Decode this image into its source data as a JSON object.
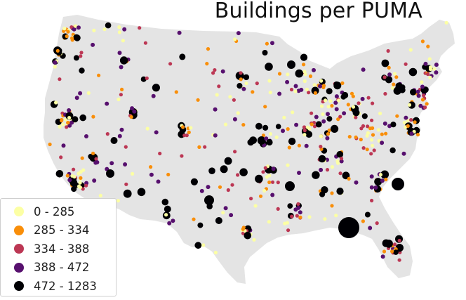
{
  "map": {
    "title": "Buildings per PUMA",
    "land_color": "#e5e5e5",
    "colors": [
      "#fcffa4",
      "#f98e09",
      "#bc3754",
      "#57106e",
      "#000004"
    ]
  },
  "legend": {
    "items": [
      {
        "label": "0 - 285",
        "color": "#fcffa4"
      },
      {
        "label": "285 - 334",
        "color": "#f98e09"
      },
      {
        "label": "334 - 388",
        "color": "#bc3754"
      },
      {
        "label": "388 - 472",
        "color": "#57106e"
      },
      {
        "label": "472 - 1283",
        "color": "#000004"
      }
    ]
  }
}
